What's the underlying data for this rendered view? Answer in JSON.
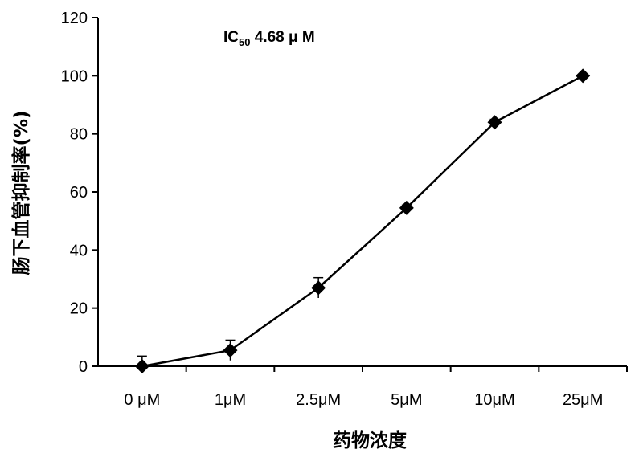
{
  "chart_data": {
    "type": "line",
    "categories": [
      "0 μM",
      "1μM",
      "2.5μM",
      "5μM",
      "10μM",
      "25μM"
    ],
    "series": [
      {
        "values": [
          0,
          5.5,
          27,
          54.5,
          84,
          100
        ],
        "errors": [
          3.5,
          3.5,
          3.5,
          1,
          1,
          0.5
        ]
      }
    ],
    "xlabel": "药物浓度",
    "ylabel": "肠下血管抑制率(%)",
    "ylim": [
      0,
      120
    ],
    "yticks": [
      0,
      20,
      40,
      60,
      80,
      100,
      120
    ],
    "annotation": {
      "prefix": "IC",
      "subscript": "50",
      "value": " 4.68 μ M"
    },
    "grid": false,
    "marker": "diamond",
    "color": "#000000"
  }
}
